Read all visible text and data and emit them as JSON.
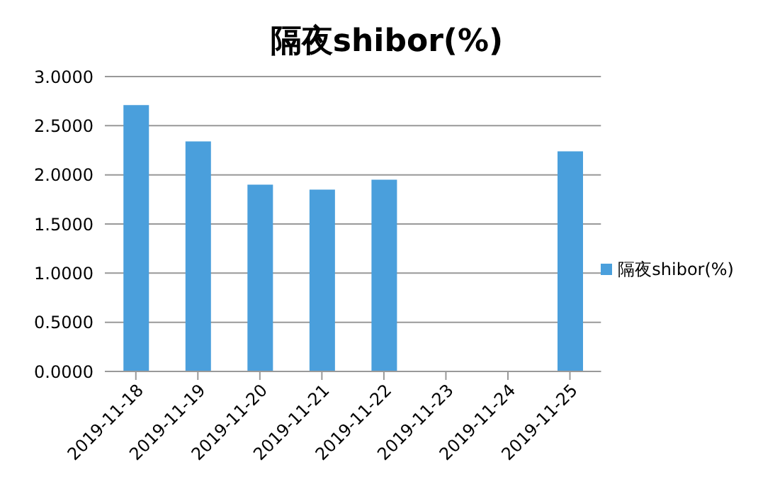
{
  "chart_data": {
    "type": "bar",
    "title": "隔夜shibor(%)",
    "categories": [
      "2019-11-18",
      "2019-11-19",
      "2019-11-20",
      "2019-11-21",
      "2019-11-22",
      "2019-11-23",
      "2019-11-24",
      "2019-11-25"
    ],
    "series": [
      {
        "name": "隔夜shibor(%)",
        "color": "#4a9fdc",
        "values": [
          2.71,
          2.34,
          1.9,
          1.85,
          1.95,
          null,
          null,
          2.24
        ]
      }
    ],
    "ylim": [
      0,
      3
    ],
    "yticks": [
      {
        "value": 0,
        "label": "0.0000"
      },
      {
        "value": 0.5,
        "label": "0.5000"
      },
      {
        "value": 1,
        "label": "1.0000"
      },
      {
        "value": 1.5,
        "label": "1.5000"
      },
      {
        "value": 2,
        "label": "2.0000"
      },
      {
        "value": 2.5,
        "label": "2.5000"
      },
      {
        "value": 3,
        "label": "3.0000"
      }
    ],
    "grid": "y",
    "legend": "right"
  }
}
